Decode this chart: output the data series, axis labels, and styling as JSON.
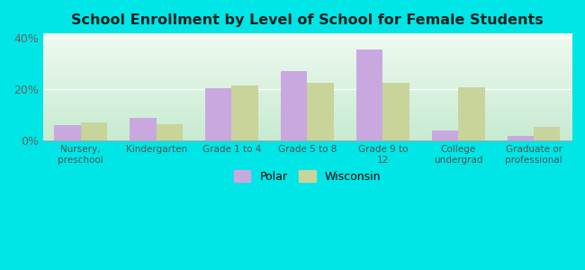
{
  "title": "School Enrollment by Level of School for Female Students",
  "categories": [
    "Nursery,\npreschool",
    "Kindergarten",
    "Grade 1 to 4",
    "Grade 5 to 8",
    "Grade 9 to\n12",
    "College\nundergrad",
    "Graduate or\nprofessional"
  ],
  "polar_values": [
    6.0,
    9.0,
    20.5,
    27.0,
    35.5,
    4.0,
    2.0
  ],
  "wisconsin_values": [
    7.0,
    6.5,
    21.5,
    22.5,
    22.5,
    21.0,
    5.5
  ],
  "polar_color": "#c9a8e0",
  "wisconsin_color": "#c8d49a",
  "background_color": "#00e5e5",
  "bg_top_left": "#cce8d8",
  "bg_bottom_right": "#e8f4e0",
  "ylim": [
    0,
    42
  ],
  "yticks": [
    0,
    20,
    40
  ],
  "ytick_labels": [
    "0%",
    "20%",
    "40%"
  ],
  "legend_polar": "Polar",
  "legend_wisconsin": "Wisconsin",
  "bar_width": 0.35
}
